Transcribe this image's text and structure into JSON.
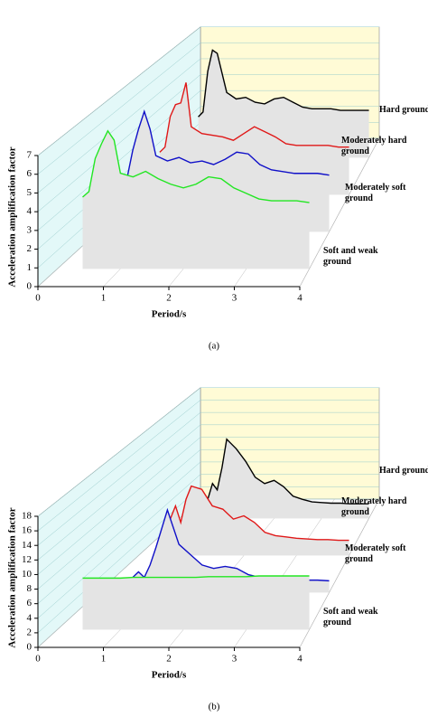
{
  "chart_data": [
    {
      "type": "waterfall",
      "caption": "(a)",
      "xlabel": "Period/s",
      "ylabel": "Acceleration amplification factor",
      "xlim": [
        0,
        4
      ],
      "xticks": [
        0,
        1,
        2,
        3,
        4
      ],
      "ylim": [
        0,
        7
      ],
      "yticks": [
        0,
        1,
        2,
        3,
        4,
        5,
        6,
        7
      ],
      "x": [
        0.4,
        0.5,
        0.6,
        0.7,
        0.8,
        0.9,
        1.0,
        1.2,
        1.4,
        1.6,
        1.8,
        2.0,
        2.2,
        2.4,
        2.6,
        2.8,
        3.0,
        3.2,
        3.4,
        3.6,
        3.8,
        4.0
      ],
      "series": [
        {
          "name": "Soft and weak ground",
          "color": "#22e622",
          "values": [
            3.9,
            4.2,
            6.0,
            6.8,
            7.5,
            7.0,
            5.2,
            5.0,
            5.3,
            4.9,
            4.6,
            4.4,
            4.6,
            5.0,
            4.9,
            4.4,
            4.1,
            3.8,
            3.7,
            3.7,
            3.7,
            3.6
          ]
        },
        {
          "name": "Moderately soft ground",
          "color": "#1010c8",
          "values": [
            2.7,
            3.0,
            4.6,
            5.8,
            6.8,
            5.8,
            4.3,
            4.0,
            4.2,
            3.9,
            4.0,
            3.8,
            4.1,
            4.5,
            4.4,
            3.8,
            3.5,
            3.4,
            3.3,
            3.3,
            3.3,
            3.2
          ]
        },
        {
          "name": "Moderately hard ground",
          "color": "#e01818",
          "values": [
            2.5,
            2.8,
            4.6,
            5.3,
            5.4,
            6.6,
            4.0,
            3.6,
            3.5,
            3.4,
            3.2,
            3.6,
            4.0,
            3.7,
            3.4,
            3.0,
            2.9,
            2.9,
            2.9,
            2.9,
            2.8,
            2.8
          ]
        },
        {
          "name": "Hard ground",
          "color": "#000000",
          "values": [
            2.5,
            2.8,
            5.3,
            6.6,
            6.4,
            5.2,
            4.0,
            3.6,
            3.7,
            3.4,
            3.3,
            3.6,
            3.7,
            3.4,
            3.1,
            3.0,
            3.0,
            3.0,
            2.9,
            2.9,
            2.9,
            2.9
          ]
        }
      ]
    },
    {
      "type": "waterfall",
      "caption": "(b)",
      "xlabel": "Period/s",
      "ylabel": "Acceleration amplification factor",
      "xlim": [
        0,
        4
      ],
      "xticks": [
        0,
        1,
        2,
        3,
        4
      ],
      "ylim": [
        0,
        18
      ],
      "yticks": [
        0,
        2,
        4,
        6,
        8,
        10,
        12,
        14,
        16,
        18
      ],
      "x": [
        0.4,
        0.5,
        0.6,
        0.7,
        0.8,
        0.9,
        1.0,
        1.2,
        1.4,
        1.6,
        1.8,
        2.0,
        2.2,
        2.4,
        2.6,
        2.8,
        3.0,
        3.2,
        3.4,
        3.6,
        3.8,
        4.0
      ],
      "series": [
        {
          "name": "Soft and weak ground",
          "color": "#22e622",
          "values": [
            7.2,
            7.2,
            7.2,
            7.2,
            7.2,
            7.2,
            7.2,
            7.3,
            7.3,
            7.3,
            7.3,
            7.3,
            7.3,
            7.4,
            7.4,
            7.4,
            7.4,
            7.5,
            7.5,
            7.5,
            7.5,
            7.5
          ]
        },
        {
          "name": "Moderately soft ground",
          "color": "#1010c8",
          "values": [
            1.5,
            1.6,
            2.2,
            3.0,
            2.2,
            4.0,
            6.5,
            12.0,
            7.0,
            5.5,
            4.0,
            3.5,
            3.8,
            3.5,
            2.6,
            2.2,
            2.0,
            1.9,
            1.8,
            1.8,
            1.8,
            1.7
          ]
        },
        {
          "name": "Moderately hard ground",
          "color": "#e01818",
          "values": [
            2.0,
            3.5,
            5.5,
            7.5,
            5.0,
            8.5,
            10.5,
            10.0,
            7.5,
            7.0,
            5.5,
            6.0,
            5.0,
            3.5,
            3.0,
            2.8,
            2.6,
            2.5,
            2.4,
            2.4,
            2.3,
            2.3
          ]
        },
        {
          "name": "Hard ground",
          "color": "#000000",
          "values": [
            1.5,
            2.0,
            3.0,
            5.5,
            4.5,
            8.0,
            12.5,
            11.0,
            9.0,
            6.5,
            5.5,
            6.0,
            5.0,
            3.5,
            3.0,
            2.6,
            2.5,
            2.4,
            2.4,
            2.3,
            2.3,
            2.3
          ]
        }
      ]
    }
  ]
}
